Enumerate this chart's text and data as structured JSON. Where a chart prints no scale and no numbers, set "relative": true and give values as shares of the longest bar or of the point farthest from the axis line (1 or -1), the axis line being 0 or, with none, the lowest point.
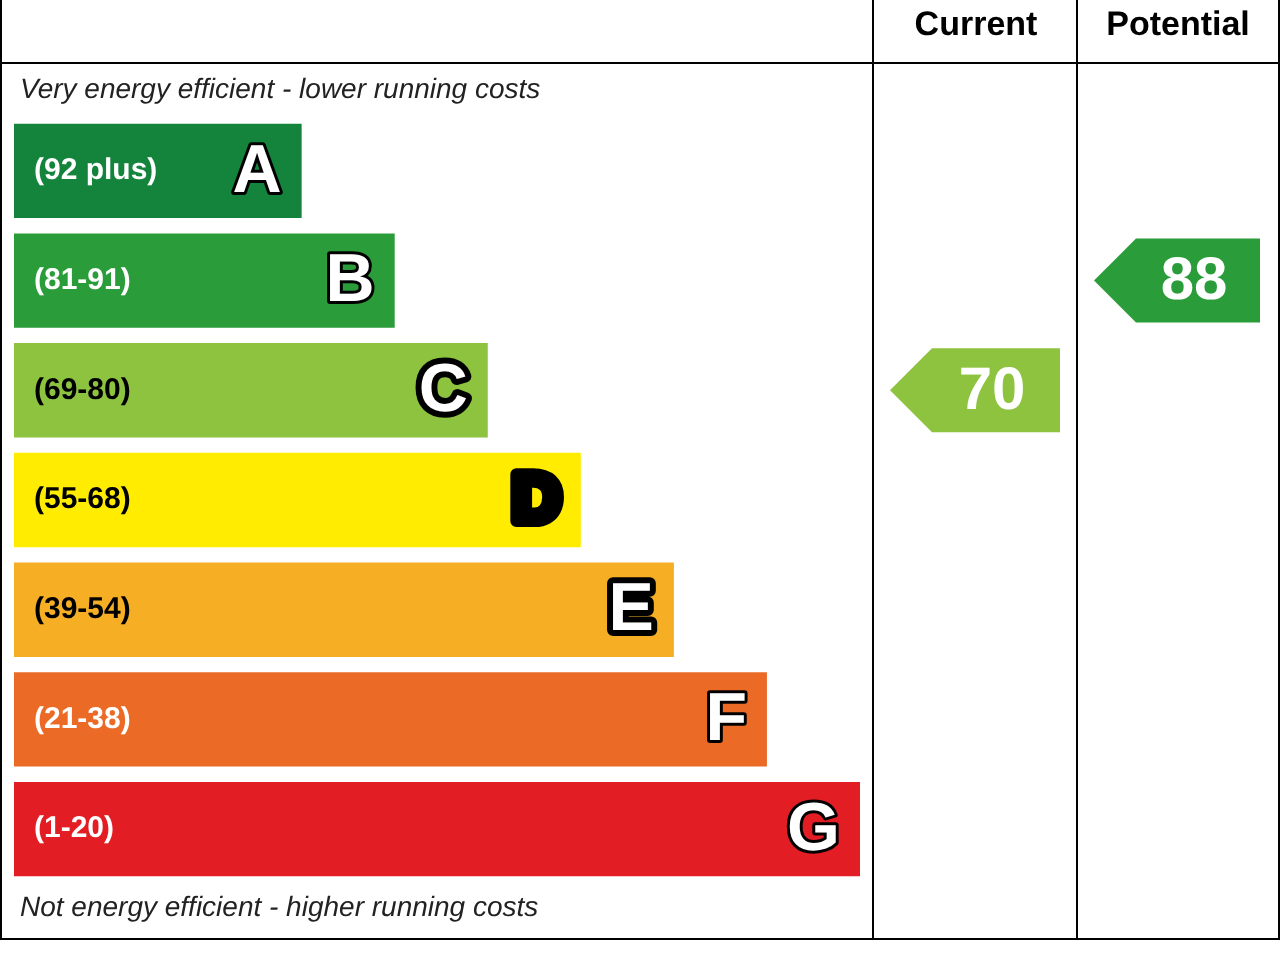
{
  "chart_data": {
    "type": "bar",
    "orientation": "horizontal",
    "relative": true,
    "legend": false,
    "categories": [
      "A",
      "B",
      "C",
      "D",
      "E",
      "F",
      "G"
    ],
    "values": [
      0.34,
      0.45,
      0.56,
      0.67,
      0.78,
      0.89,
      1
    ],
    "colors": [
      "#14843c",
      "#2a9d3a",
      "#8dc33f",
      "#ffec00",
      "#f6ae25",
      "#ea6a26",
      "#e21d24"
    ],
    "annotations": [
      "Very energy efficient - lower running costs",
      "Not energy efficient - higher running costs",
      "Current",
      "Potential",
      "70",
      "88",
      "(92 plus)",
      "(81-91)",
      "(69-80)",
      "(55-68)",
      "(39-54)",
      "(21-38)",
      "(1-20)"
    ]
  }
}
